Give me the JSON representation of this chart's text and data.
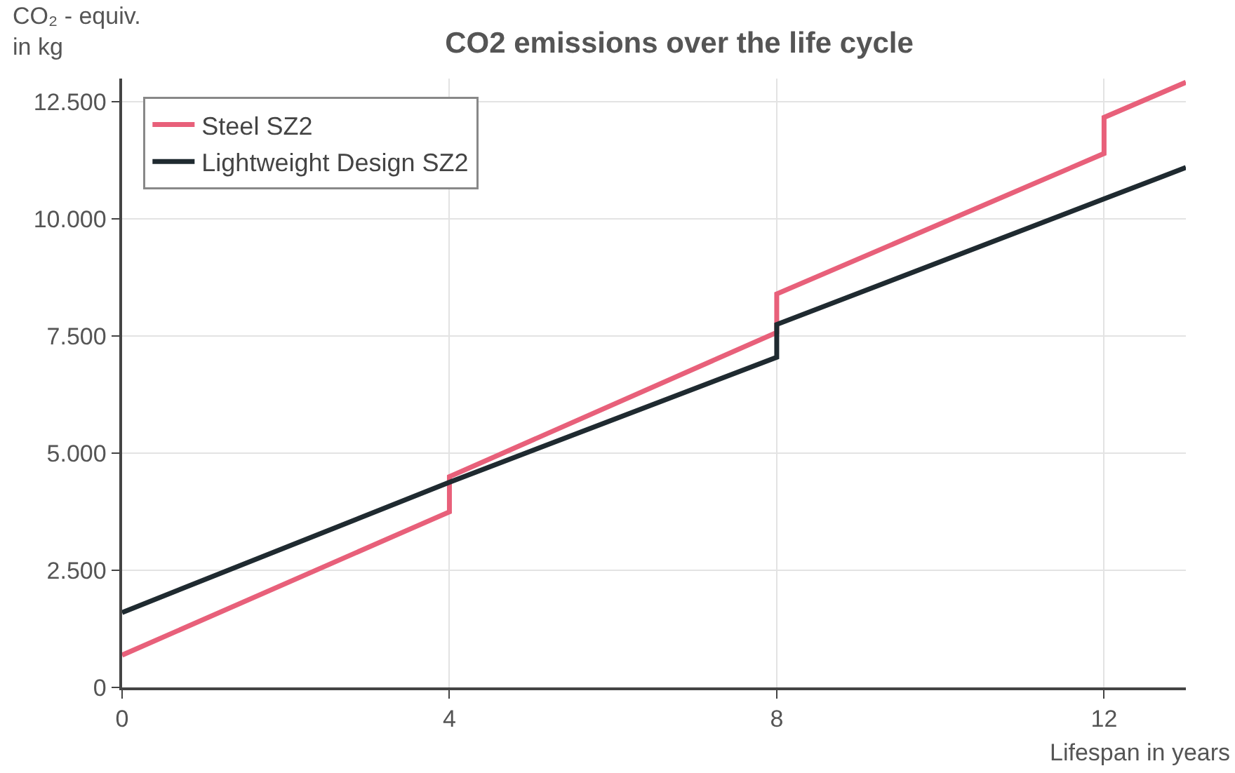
{
  "chart_data": {
    "type": "line",
    "title": "CO2 emissions over the life cycle",
    "xlabel": "Lifespan in years",
    "ylabel": "CO₂ - equiv.\nin kg",
    "xlim": [
      0,
      13
    ],
    "xticks": [
      0,
      4,
      8,
      12
    ],
    "ylim": [
      0,
      13000
    ],
    "yticks": [
      {
        "value": 0,
        "label": "0"
      },
      {
        "value": 2500,
        "label": "2.500"
      },
      {
        "value": 5000,
        "label": "5.000"
      },
      {
        "value": 7500,
        "label": "7.500"
      },
      {
        "value": 10000,
        "label": "10.000"
      },
      {
        "value": 12500,
        "label": "12.500"
      }
    ],
    "grid": true,
    "legend": "top left",
    "marker": "none",
    "line_style": "solid",
    "series": [
      {
        "name": "Steel SZ2",
        "color": "#e8607a",
        "x": [
          0,
          4,
          4,
          8,
          8,
          12,
          12,
          13
        ],
        "values": [
          690,
          3750,
          4500,
          7580,
          8400,
          11400,
          12170,
          12920
        ]
      },
      {
        "name": "Lightweight Design SZ2",
        "color": "#1f2a30",
        "x": [
          0,
          4,
          8,
          8,
          12,
          13
        ],
        "values": [
          1600,
          4380,
          7050,
          7750,
          10430,
          11100
        ]
      }
    ]
  }
}
